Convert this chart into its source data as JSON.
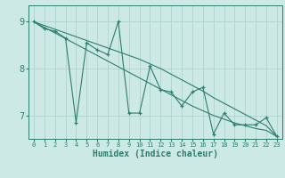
{
  "title": "",
  "xlabel": "Humidex (Indice chaleur)",
  "bg_color": "#cce9e5",
  "line_color": "#2e7d6e",
  "grid_color": "#aacfcc",
  "xlim": [
    -0.5,
    23.5
  ],
  "ylim": [
    6.5,
    9.35
  ],
  "yticks": [
    7,
    8,
    9
  ],
  "xticks": [
    0,
    1,
    2,
    3,
    4,
    5,
    6,
    7,
    8,
    9,
    10,
    11,
    12,
    13,
    14,
    15,
    16,
    17,
    18,
    19,
    20,
    21,
    22,
    23
  ],
  "x_data": [
    0,
    1,
    2,
    3,
    4,
    5,
    6,
    7,
    8,
    9,
    10,
    11,
    12,
    13,
    14,
    15,
    16,
    17,
    18,
    19,
    20,
    21,
    22,
    23
  ],
  "y_jagged": [
    9.0,
    8.85,
    8.8,
    8.65,
    6.85,
    8.55,
    8.4,
    8.3,
    9.0,
    7.05,
    7.05,
    8.05,
    7.55,
    7.5,
    7.2,
    7.5,
    7.6,
    6.6,
    7.05,
    6.8,
    6.8,
    6.8,
    6.95,
    6.55
  ],
  "y_trend1": [
    9.0,
    8.88,
    8.76,
    8.64,
    8.52,
    8.4,
    8.28,
    8.16,
    8.04,
    7.92,
    7.8,
    7.68,
    7.56,
    7.44,
    7.32,
    7.2,
    7.1,
    7.0,
    6.92,
    6.84,
    6.78,
    6.72,
    6.68,
    6.55
  ],
  "y_trend2": [
    9.0,
    8.92,
    8.84,
    8.76,
    8.68,
    8.6,
    8.52,
    8.44,
    8.36,
    8.28,
    8.2,
    8.1,
    8.0,
    7.88,
    7.76,
    7.64,
    7.52,
    7.38,
    7.26,
    7.14,
    7.02,
    6.9,
    6.78,
    6.55
  ]
}
